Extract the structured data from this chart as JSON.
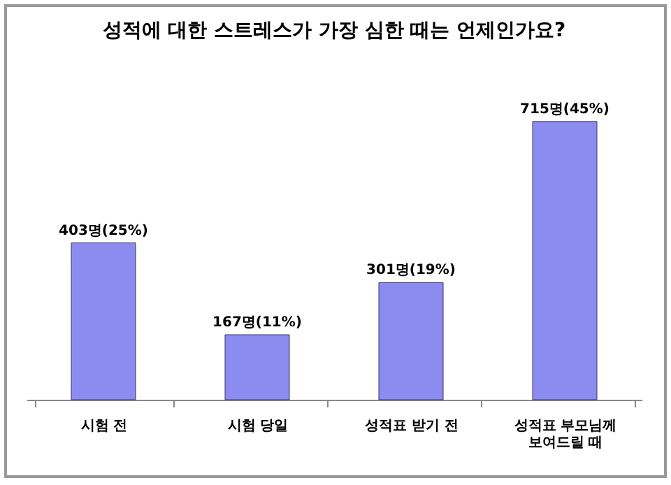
{
  "chart_data": {
    "type": "bar",
    "title": "성적에 대한 스트레스가 가장 심한 때는 언제인가요?",
    "categories": [
      "시험 전",
      "시험 당일",
      "성적표 받기 전",
      "성적표 부모님께 보여드릴 때"
    ],
    "values": [
      403,
      167,
      301,
      715
    ],
    "value_labels": [
      "403명(25%)",
      "167명(11%)",
      "301명(19%)",
      "715명(45%)"
    ],
    "color": "#8c8cf0"
  }
}
